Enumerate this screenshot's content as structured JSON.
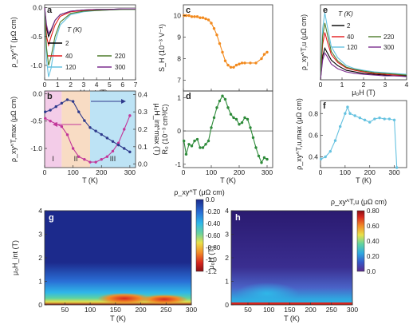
{
  "chart_data": [
    {
      "panel": "a",
      "type": "line",
      "xlabel": "μ₀H_int (T)",
      "ylabel": "ρ_xy^T (μΩ cm)",
      "xlim": [
        0,
        7
      ],
      "ylim": [
        -1.25,
        0.05
      ],
      "xticks": [
        0,
        1,
        2,
        3,
        4,
        5,
        6,
        7
      ],
      "yticks": [
        0.0,
        -0.5,
        -1.0
      ],
      "legend_title": "T (K)",
      "legend_placement": "inside",
      "series": [
        {
          "name": "2",
          "color": "#000000",
          "x": [
            0,
            0.15,
            0.3,
            0.5,
            0.8,
            1.2,
            2,
            3,
            4,
            5,
            6,
            7
          ],
          "y": [
            0,
            -0.35,
            -0.5,
            -0.4,
            -0.22,
            -0.12,
            -0.06,
            -0.04,
            -0.03,
            -0.03,
            -0.02,
            -0.02
          ]
        },
        {
          "name": "40",
          "color": "#e41a1c",
          "x": [
            0,
            0.15,
            0.3,
            0.5,
            0.8,
            1.2,
            2,
            3,
            4,
            5,
            6,
            7
          ],
          "y": [
            0,
            -0.5,
            -0.65,
            -0.5,
            -0.3,
            -0.15,
            -0.07,
            -0.05,
            -0.04,
            -0.03,
            -0.03,
            -0.02
          ]
        },
        {
          "name": "120",
          "color": "#66c2e0",
          "x": [
            0,
            0.15,
            0.3,
            0.5,
            0.8,
            1.2,
            2,
            3,
            4,
            5,
            6,
            7
          ],
          "y": [
            0,
            -0.9,
            -1.2,
            -1.05,
            -0.6,
            -0.3,
            -0.12,
            -0.07,
            -0.05,
            -0.04,
            -0.03,
            -0.03
          ]
        },
        {
          "name": "220",
          "color": "#4d7c2a",
          "x": [
            0,
            0.15,
            0.3,
            0.5,
            0.8,
            1.2,
            2,
            3,
            4,
            5,
            6,
            7
          ],
          "y": [
            0,
            -0.7,
            -1.0,
            -0.85,
            -0.5,
            -0.25,
            -0.1,
            -0.06,
            -0.05,
            -0.04,
            -0.03,
            -0.03
          ]
        },
        {
          "name": "300",
          "color": "#7b2d8e",
          "x": [
            0,
            0.15,
            0.3,
            0.5,
            0.8,
            1.2,
            2,
            3,
            4,
            5,
            6,
            7
          ],
          "y": [
            0,
            -0.3,
            -0.45,
            -0.38,
            -0.22,
            -0.12,
            -0.06,
            -0.04,
            -0.03,
            -0.03,
            -0.02,
            -0.02
          ]
        }
      ]
    },
    {
      "panel": "b",
      "type": "line",
      "xlabel": "T (K)",
      "ylabel_left": "ρ_xy^T,max (μΩ cm)",
      "ylabel_right": "μ₀H_int^max (T)",
      "xlim": [
        0,
        320
      ],
      "ylim_left": [
        -1.35,
        0.05
      ],
      "ylim_right": [
        -0.02,
        0.42
      ],
      "xticks": [
        0,
        100,
        200,
        300
      ],
      "yticks_left": [
        0.0,
        -0.5,
        -1.0
      ],
      "yticks_right": [
        0.0,
        0.1,
        0.2,
        0.3,
        0.4
      ],
      "region_labels": [
        "I",
        "II",
        "III"
      ],
      "regions": [
        {
          "label": "I",
          "from": 0,
          "to": 60,
          "color": "#f3cce8"
        },
        {
          "label": "II",
          "from": 60,
          "to": 160,
          "color": "#f8dcc4"
        },
        {
          "label": "III",
          "from": 160,
          "to": 320,
          "color": "#bde3f5"
        }
      ],
      "series": [
        {
          "axis": "left",
          "color": "#c2379a",
          "x": [
            2,
            20,
            40,
            60,
            80,
            100,
            120,
            140,
            160,
            180,
            200,
            220,
            240,
            260,
            280,
            300
          ],
          "y": [
            -0.45,
            -0.5,
            -0.55,
            -0.6,
            -0.75,
            -1.0,
            -1.15,
            -1.2,
            -1.25,
            -1.25,
            -1.2,
            -1.15,
            -1.05,
            -0.9,
            -0.65,
            -0.4
          ]
        },
        {
          "axis": "right",
          "color": "#2e3a8c",
          "x": [
            2,
            20,
            40,
            60,
            80,
            100,
            120,
            140,
            160,
            180,
            200,
            220,
            240,
            260,
            280,
            300
          ],
          "y": [
            0.3,
            0.31,
            0.33,
            0.35,
            0.37,
            0.36,
            0.3,
            0.25,
            0.21,
            0.19,
            0.17,
            0.15,
            0.13,
            0.11,
            0.09,
            0.07
          ]
        }
      ]
    },
    {
      "panel": "c",
      "type": "line",
      "xlabel": "",
      "ylabel": "S_H (10⁻³ V⁻¹)",
      "xlim": [
        0,
        320
      ],
      "ylim": [
        6.5,
        10.5
      ],
      "yticks": [
        7,
        8,
        9,
        10
      ],
      "color": "#f28a1e",
      "x": [
        2,
        10,
        20,
        30,
        40,
        50,
        60,
        70,
        80,
        90,
        100,
        110,
        120,
        130,
        140,
        150,
        160,
        170,
        180,
        190,
        200,
        210,
        220,
        240,
        260,
        280,
        290,
        300
      ],
      "y": [
        10.0,
        10.0,
        10.0,
        9.95,
        9.95,
        9.95,
        9.9,
        9.9,
        9.85,
        9.8,
        9.65,
        9.4,
        9.1,
        8.7,
        8.3,
        7.9,
        7.7,
        7.6,
        7.6,
        7.7,
        7.75,
        7.8,
        7.8,
        7.8,
        7.8,
        8.0,
        8.2,
        8.3
      ]
    },
    {
      "panel": "d",
      "type": "line",
      "xlabel": "T (K)",
      "ylabel": "R₀ (10⁻³ cm³/C)",
      "xlim": [
        0,
        320
      ],
      "ylim": [
        -1.1,
        1.2
      ],
      "xticks": [
        0,
        100,
        200,
        300
      ],
      "yticks": [
        -1,
        0,
        1
      ],
      "color": "#2e8b3a",
      "x": [
        2,
        10,
        20,
        30,
        40,
        50,
        60,
        70,
        80,
        90,
        100,
        110,
        120,
        130,
        140,
        150,
        160,
        170,
        180,
        190,
        200,
        210,
        220,
        230,
        240,
        250,
        260,
        270,
        280,
        290,
        300
      ],
      "y": [
        -0.3,
        -0.7,
        -0.4,
        -0.45,
        -0.3,
        -0.25,
        -0.5,
        -0.5,
        -0.4,
        -0.3,
        0.1,
        0.4,
        0.7,
        0.9,
        1.05,
        0.95,
        0.7,
        0.5,
        0.4,
        0.35,
        0.2,
        0.25,
        0.4,
        0.35,
        0.1,
        -0.2,
        -0.5,
        -0.75,
        -0.95,
        -0.8,
        -0.85
      ]
    },
    {
      "panel": "e",
      "type": "line",
      "xlabel": "μ₀H (T)",
      "ylabel": "ρ_xy^T,u (μΩ cm)",
      "xlim": [
        0,
        4
      ],
      "ylim": [
        0,
        0.95
      ],
      "xticks": [
        0,
        1,
        2,
        3,
        4
      ],
      "legend_title": "T (K)",
      "legend_placement": "inside",
      "series": [
        {
          "name": "2",
          "color": "#000000",
          "x": [
            0,
            0.1,
            0.2,
            0.3,
            0.5,
            0.8,
            1.2,
            1.6,
            2,
            2.5,
            3,
            3.5,
            4
          ],
          "y": [
            0,
            0.3,
            0.4,
            0.35,
            0.25,
            0.18,
            0.12,
            0.1,
            0.08,
            0.07,
            0.06,
            0.05,
            0.05
          ]
        },
        {
          "name": "40",
          "color": "#e41a1c",
          "x": [
            0,
            0.1,
            0.2,
            0.3,
            0.5,
            0.8,
            1.2,
            1.6,
            2,
            2.5,
            3,
            3.5,
            4
          ],
          "y": [
            0,
            0.45,
            0.6,
            0.5,
            0.32,
            0.22,
            0.15,
            0.12,
            0.1,
            0.08,
            0.07,
            0.06,
            0.06
          ]
        },
        {
          "name": "120",
          "color": "#66c2e0",
          "x": [
            0,
            0.1,
            0.2,
            0.3,
            0.5,
            0.8,
            1.2,
            1.6,
            2,
            2.5,
            3,
            3.5,
            4
          ],
          "y": [
            0,
            0.65,
            0.85,
            0.7,
            0.42,
            0.28,
            0.18,
            0.14,
            0.12,
            0.1,
            0.09,
            0.08,
            0.07
          ]
        },
        {
          "name": "220",
          "color": "#4d7c2a",
          "x": [
            0,
            0.1,
            0.2,
            0.3,
            0.5,
            0.8,
            1.2,
            1.6,
            2,
            2.5,
            3,
            3.5,
            4
          ],
          "y": [
            0,
            0.55,
            0.72,
            0.6,
            0.36,
            0.24,
            0.16,
            0.13,
            0.11,
            0.09,
            0.08,
            0.07,
            0.06
          ]
        },
        {
          "name": "300",
          "color": "#7b2d8e",
          "x": [
            0,
            0.1,
            0.2,
            0.3,
            0.5,
            0.8,
            1.2,
            1.6,
            2,
            2.5,
            3,
            3.5,
            4
          ],
          "y": [
            0,
            0.25,
            0.34,
            0.3,
            0.2,
            0.14,
            0.1,
            0.08,
            0.07,
            0.06,
            0.05,
            0.05,
            0.04
          ]
        }
      ]
    },
    {
      "panel": "f",
      "type": "line",
      "xlabel": "T (K)",
      "ylabel": "ρ_xy^T,u,max (μΩ cm)",
      "xlim": [
        0,
        350
      ],
      "ylim": [
        0.3,
        0.92
      ],
      "xticks": [
        0,
        100,
        200,
        300
      ],
      "yticks": [
        0.4,
        0.6,
        0.8
      ],
      "color": "#66c2e0",
      "x": [
        2,
        20,
        40,
        60,
        80,
        100,
        110,
        120,
        140,
        160,
        180,
        200,
        220,
        240,
        260,
        280,
        300,
        310
      ],
      "y": [
        0.38,
        0.4,
        0.45,
        0.55,
        0.68,
        0.8,
        0.86,
        0.8,
        0.78,
        0.76,
        0.74,
        0.72,
        0.75,
        0.76,
        0.75,
        0.75,
        0.74,
        0.3
      ]
    },
    {
      "panel": "g",
      "type": "heatmap",
      "xlabel": "T (K)",
      "ylabel": "μ₀H_int (T)",
      "xlim": [
        10,
        300
      ],
      "ylim": [
        0,
        4
      ],
      "xticks": [
        50,
        100,
        150,
        200,
        250,
        300
      ],
      "yticks": [
        0,
        1,
        2,
        3,
        4
      ],
      "colorbar_label": "ρ_xy^T (μΩ cm)",
      "colorbar_ticks": [
        "0.0",
        "-0.20",
        "-0.40",
        "-0.60",
        "-0.80",
        "-1.0",
        "-1.2"
      ],
      "zlim": [
        -1.2,
        0.0
      ]
    },
    {
      "panel": "h",
      "type": "heatmap",
      "xlabel": "T (K)",
      "ylabel": "μ₀H (T)",
      "xlim": [
        10,
        300
      ],
      "ylim": [
        0,
        4
      ],
      "xticks": [
        50,
        100,
        150,
        200,
        250,
        300
      ],
      "yticks": [
        0,
        1,
        2,
        3,
        4
      ],
      "colorbar_label": "ρ_xy^T,u (μΩ cm)",
      "colorbar_ticks": [
        "0.80",
        "0.60",
        "0.40",
        "0.20",
        "0.0"
      ],
      "zlim": [
        0.0,
        0.8
      ]
    }
  ]
}
